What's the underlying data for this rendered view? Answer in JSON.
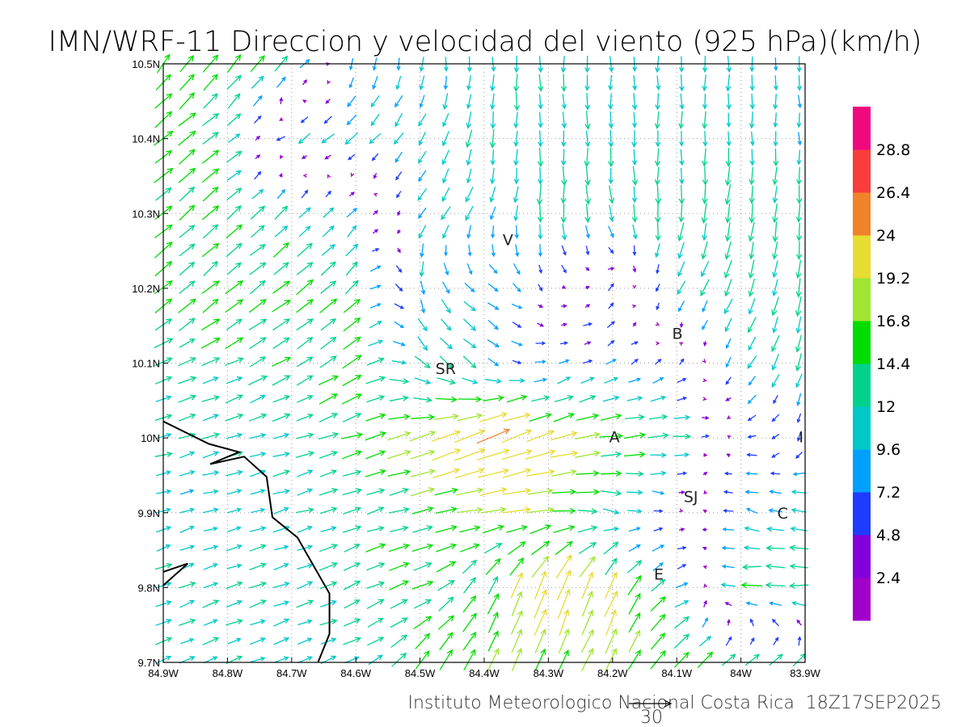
{
  "chart_data": {
    "type": "vector",
    "title": "IMN/WRF-11 Direccion y velocidad del viento (925 hPa)(km/h)",
    "footer": "Instituto Meteorologico Nacional Costa Rica  18Z17SEP2025",
    "reference_vector": {
      "value": 30,
      "label": "30"
    },
    "xlim": [
      -84.9,
      -83.9
    ],
    "ylim": [
      9.7,
      10.5
    ],
    "grid": true,
    "x_ticks": [
      {
        "value": -84.9,
        "label": "84.9W"
      },
      {
        "value": -84.8,
        "label": "84.8W"
      },
      {
        "value": -84.7,
        "label": "84.7W"
      },
      {
        "value": -84.6,
        "label": "84.6W"
      },
      {
        "value": -84.5,
        "label": "84.5W"
      },
      {
        "value": -84.4,
        "label": "84.4W"
      },
      {
        "value": -84.3,
        "label": "84.3W"
      },
      {
        "value": -84.2,
        "label": "84.2W"
      },
      {
        "value": -84.1,
        "label": "84.1W"
      },
      {
        "value": -84.0,
        "label": "84W"
      },
      {
        "value": -83.9,
        "label": "83.9W"
      }
    ],
    "y_ticks": [
      {
        "value": 9.7,
        "label": "9.7N"
      },
      {
        "value": 9.8,
        "label": "9.8N"
      },
      {
        "value": 9.9,
        "label": "9.9N"
      },
      {
        "value": 10.0,
        "label": "10N"
      },
      {
        "value": 10.1,
        "label": "10.1N"
      },
      {
        "value": 10.2,
        "label": "10.2N"
      },
      {
        "value": 10.3,
        "label": "10.3N"
      },
      {
        "value": 10.4,
        "label": "10.4N"
      },
      {
        "value": 10.5,
        "label": "10.5N"
      }
    ],
    "colorbar": {
      "levels": [
        "2.4",
        "4.8",
        "7.2",
        "9.6",
        "12",
        "14.4",
        "16.8",
        "19.2",
        "24",
        "26.4",
        "28.8"
      ],
      "thresholds": [
        2.4,
        4.8,
        7.2,
        9.6,
        12,
        14.4,
        16.8,
        19.2,
        24,
        26.4,
        28.8
      ],
      "colors": [
        "#a000c8",
        "#8200dc",
        "#1e3cff",
        "#00a0ff",
        "#00c8c8",
        "#00d28c",
        "#00dc00",
        "#a0e632",
        "#e6dc32",
        "#f0822a",
        "#fa3c3c",
        "#f0087f"
      ]
    },
    "stations": [
      {
        "label": "V",
        "lon": -84.363,
        "lat": 10.265
      },
      {
        "label": "B",
        "lon": -84.099,
        "lat": 10.14
      },
      {
        "label": "SR",
        "lon": -84.46,
        "lat": 10.093
      },
      {
        "label": "A",
        "lon": -84.197,
        "lat": 10.002
      },
      {
        "label": "I",
        "lon": -83.906,
        "lat": 10.002
      },
      {
        "label": "SJ",
        "lon": -84.078,
        "lat": 9.922
      },
      {
        "label": "C",
        "lon": -83.935,
        "lat": 9.9
      },
      {
        "label": "E",
        "lon": -84.128,
        "lat": 9.818
      }
    ],
    "coastline": [
      [
        [
          -84.9,
          10.022
        ],
        [
          -84.829,
          9.992
        ],
        [
          -84.782,
          9.981
        ],
        [
          -84.827,
          9.965
        ],
        [
          -84.774,
          9.975
        ],
        [
          -84.739,
          9.948
        ],
        [
          -84.73,
          9.894
        ],
        [
          -84.691,
          9.867
        ],
        [
          -84.641,
          9.792
        ],
        [
          -84.641,
          9.738
        ],
        [
          -84.659,
          9.7
        ]
      ],
      [
        [
          -84.9,
          9.803
        ],
        [
          -84.862,
          9.832
        ],
        [
          -84.9,
          9.821
        ]
      ]
    ],
    "wind_grid": {
      "lons": [
        -84.9,
        -84.8,
        -84.7,
        -84.6,
        -84.5,
        -84.4,
        -84.3,
        -84.2,
        -84.1,
        -84.0,
        -83.9
      ],
      "lats": [
        10.5,
        10.4,
        10.3,
        10.2,
        10.1,
        10.0,
        9.9,
        9.8,
        9.7
      ],
      "u": [
        [
          10,
          10,
          8,
          -3,
          -1,
          0,
          0,
          0,
          0,
          0,
          0
        ],
        [
          12,
          11,
          -8,
          -8,
          -6,
          -1,
          0,
          0,
          0,
          0,
          0
        ],
        [
          12,
          10,
          8,
          6,
          -6,
          -4,
          0,
          2,
          -1,
          -2,
          -1
        ],
        [
          12,
          11,
          12,
          10,
          1,
          8,
          3,
          4,
          -6,
          -4,
          -2
        ],
        [
          12,
          12,
          12,
          13,
          10,
          8,
          6,
          6,
          4,
          -6,
          -3
        ],
        [
          11,
          11,
          12,
          14,
          18,
          24,
          20,
          16,
          14,
          -6,
          -2
        ],
        [
          10,
          10,
          11,
          12,
          14,
          18,
          18,
          12,
          2,
          -8,
          -12
        ],
        [
          11,
          11,
          11,
          12,
          14,
          6,
          8,
          8,
          10,
          -14,
          -14
        ],
        [
          10,
          10,
          10,
          11,
          10,
          8,
          6,
          8,
          10,
          10,
          8
        ]
      ],
      "v": [
        [
          12,
          12,
          10,
          -8,
          -10,
          -11,
          -11,
          -11,
          -11,
          -10,
          -10
        ],
        [
          10,
          8,
          -6,
          -7,
          -8,
          -12,
          -12,
          -12,
          -11,
          -11,
          -10
        ],
        [
          10,
          9,
          8,
          7,
          -8,
          -9,
          -14,
          -12,
          -13,
          -14,
          -13
        ],
        [
          10,
          9,
          10,
          9,
          -10,
          -6,
          -3,
          5,
          -10,
          -12,
          -13
        ],
        [
          5,
          6,
          7,
          9,
          -8,
          -7,
          3,
          3,
          4,
          -8,
          -12
        ],
        [
          3,
          3,
          3,
          4,
          6,
          10,
          6,
          2,
          1,
          1,
          -6
        ],
        [
          3,
          3,
          3,
          4,
          3,
          2,
          1,
          -2,
          -1,
          2,
          2
        ],
        [
          4,
          4,
          4,
          5,
          5,
          12,
          22,
          18,
          4,
          0,
          0
        ],
        [
          4,
          4,
          4,
          5,
          12,
          16,
          14,
          16,
          12,
          8,
          8
        ]
      ]
    }
  }
}
